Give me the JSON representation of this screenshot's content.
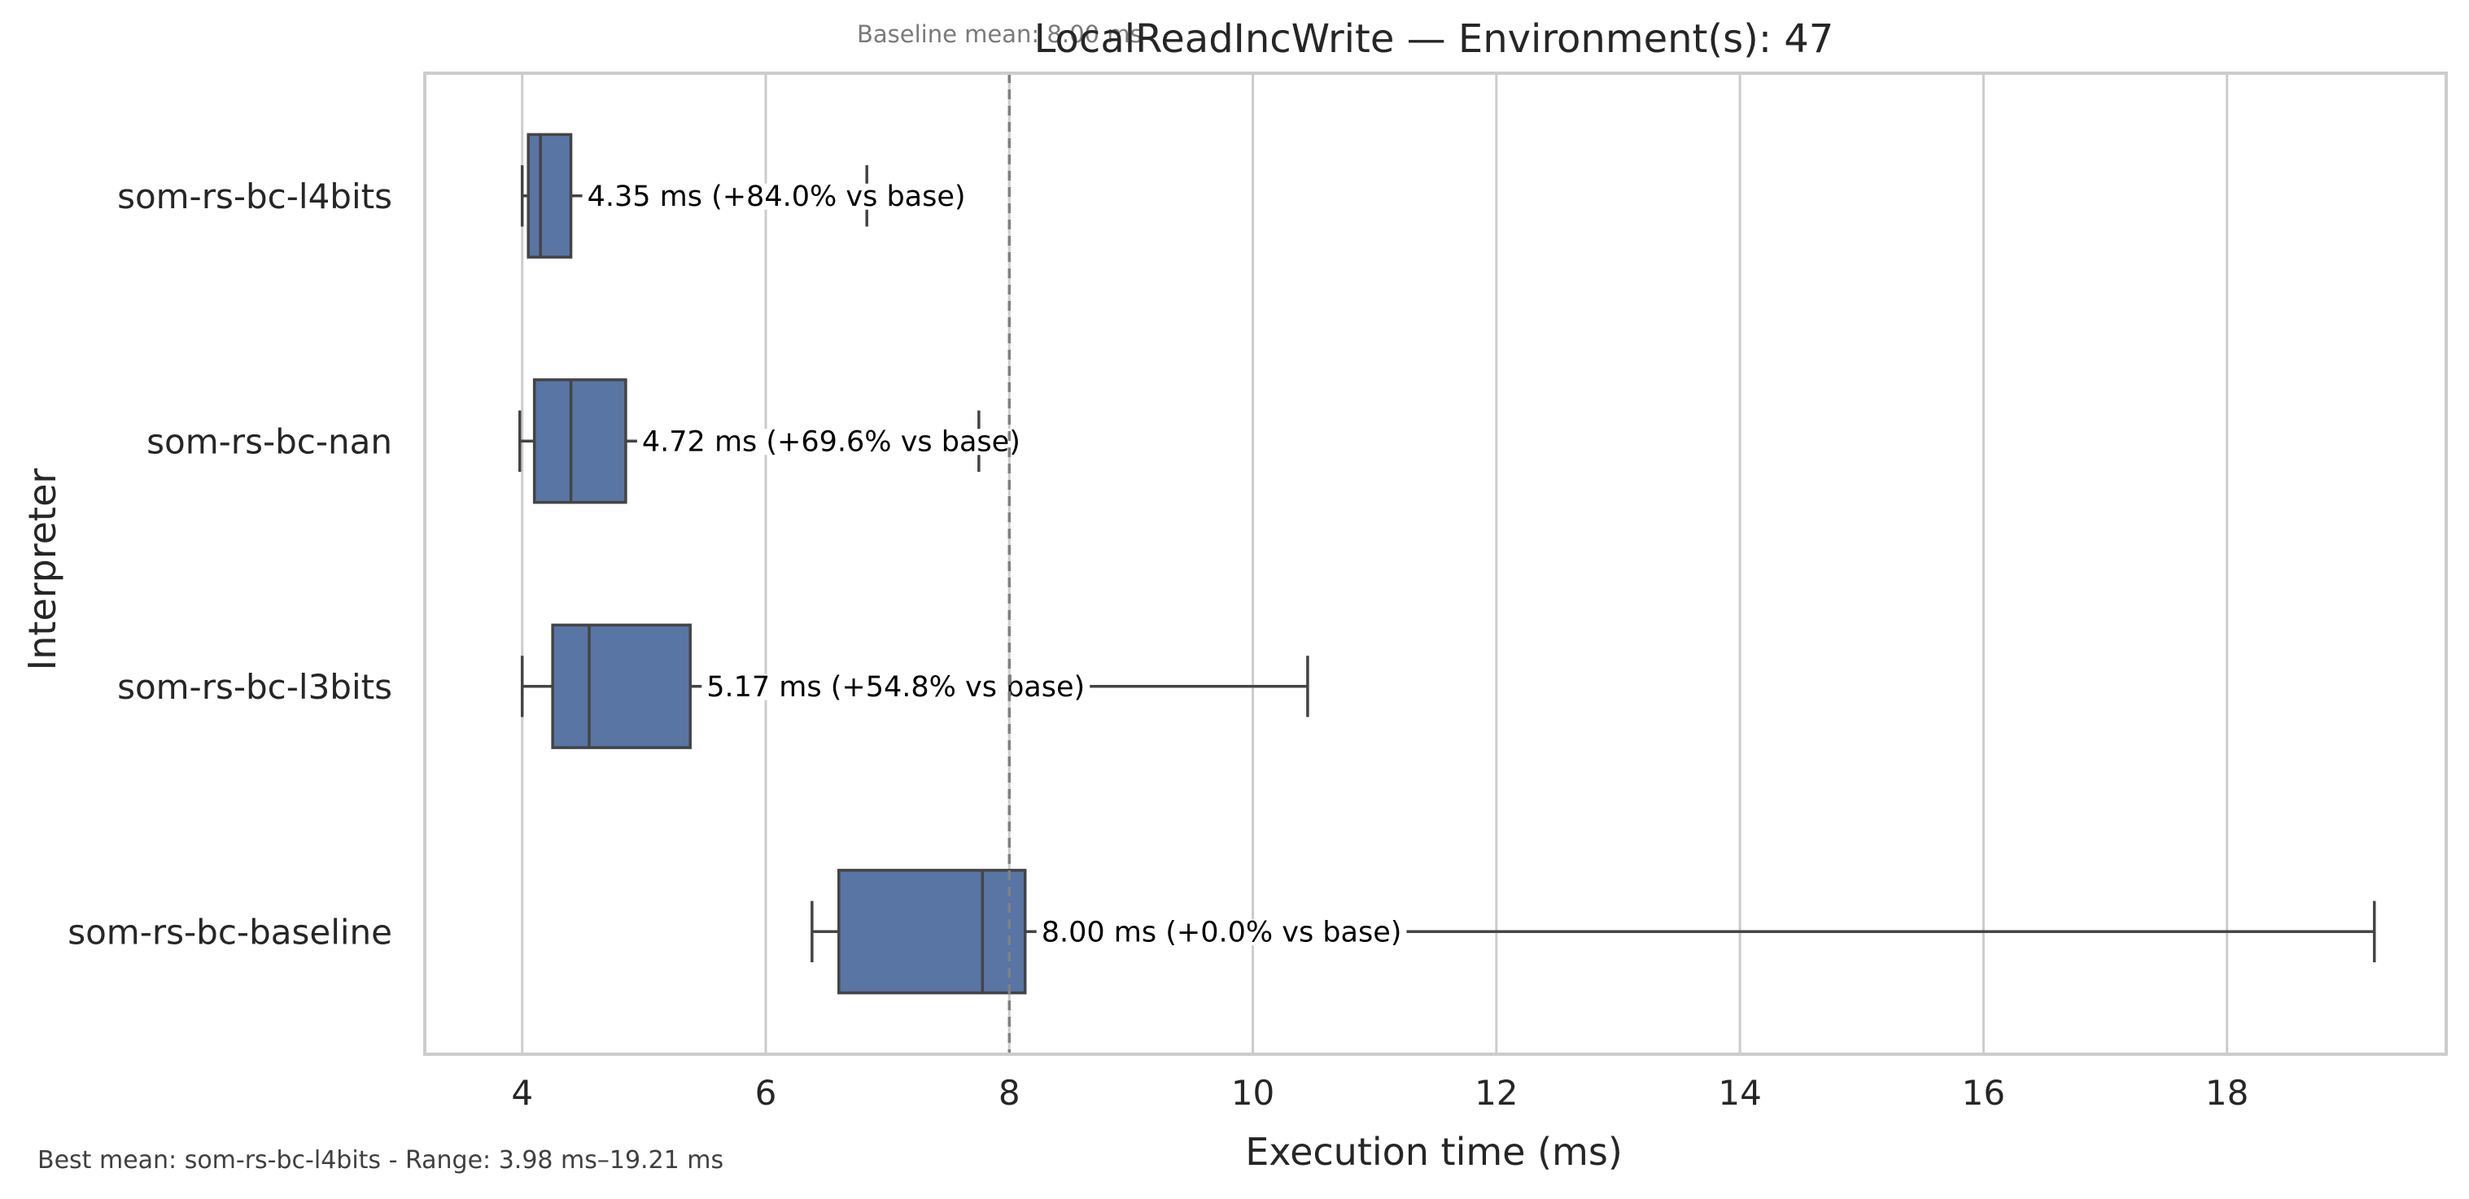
{
  "chart_data": {
    "type": "box",
    "title": "LocalReadIncWrite — Environment(s): 47",
    "xlabel": "Execution time (ms)",
    "ylabel": "Interpreter",
    "xlim": [
      3.2,
      19.8
    ],
    "xticks": [
      4,
      6,
      8,
      10,
      12,
      14,
      16,
      18
    ],
    "xtick_labels": [
      "4",
      "6",
      "8",
      "10",
      "12",
      "14",
      "16",
      "18"
    ],
    "grid": "vertical",
    "orientation": "horizontal",
    "box_color": "#5875a4",
    "line_color": "#444444",
    "baseline_line": {
      "value": 8.0,
      "style": "dashed",
      "color": "#808080"
    },
    "baseline_note": "Baseline mean: 8.00 ms",
    "footnote": "Best mean: som-rs-bc-l4bits - Range: 3.98 ms–19.21 ms",
    "series": [
      {
        "name": "som-rs-bc-l4bits",
        "whisker_low": 4.0,
        "q1": 4.05,
        "median": 4.15,
        "q3": 4.4,
        "whisker_high": 6.83,
        "label": "4.35 ms  (+84.0% vs base)"
      },
      {
        "name": "som-rs-bc-nan",
        "whisker_low": 3.98,
        "q1": 4.1,
        "median": 4.4,
        "q3": 4.85,
        "whisker_high": 7.75,
        "label": "4.72 ms  (+69.6% vs base)"
      },
      {
        "name": "som-rs-bc-l3bits",
        "whisker_low": 4.0,
        "q1": 4.25,
        "median": 4.55,
        "q3": 5.38,
        "whisker_high": 10.45,
        "label": "5.17 ms  (+54.8% vs base)"
      },
      {
        "name": "som-rs-bc-baseline",
        "whisker_low": 6.38,
        "q1": 6.6,
        "median": 7.78,
        "q3": 8.13,
        "whisker_high": 19.21,
        "label": "8.00 ms  (+0.0% vs base)"
      }
    ]
  }
}
